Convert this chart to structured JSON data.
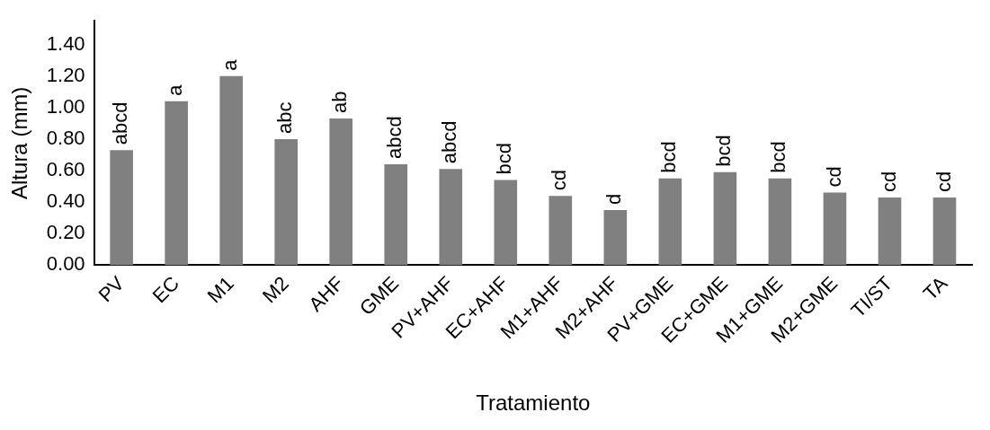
{
  "chart_data": {
    "type": "bar",
    "xlabel": "Tratamiento",
    "ylabel": "Altura (mm)",
    "categories": [
      "PV",
      "EC",
      "M1",
      "M2",
      "AHF",
      "GME",
      "PV+AHF",
      "EC+AHF",
      "M1+AHF",
      "M2+AHF",
      "PV+GME",
      "EC+GME",
      "M1+GME",
      "M2+GME",
      "TI/ST",
      "TA"
    ],
    "values": [
      0.73,
      1.04,
      1.2,
      0.8,
      0.93,
      0.64,
      0.61,
      0.54,
      0.44,
      0.35,
      0.55,
      0.59,
      0.55,
      0.46,
      0.43,
      0.43
    ],
    "color": "#808080",
    "ylim": [
      0,
      1.55
    ],
    "yticks": [
      {
        "value": 0,
        "label": "0.00"
      },
      {
        "value": 0.2,
        "label": "0.20"
      },
      {
        "value": 0.4,
        "label": "0.40"
      },
      {
        "value": 0.6,
        "label": "0.60"
      },
      {
        "value": 0.8,
        "label": "0.80"
      },
      {
        "value": 1,
        "label": "1.00"
      },
      {
        "value": 1.2,
        "label": "1.20"
      },
      {
        "value": 1.4,
        "label": "1.40"
      }
    ],
    "grid": false,
    "legend": false,
    "annotations": [
      {
        "text": "abcd",
        "x": "PV",
        "y": 0.73
      },
      {
        "text": "a",
        "x": "EC",
        "y": 1.04
      },
      {
        "text": "a",
        "x": "M1",
        "y": 1.2
      },
      {
        "text": "abc",
        "x": "M2",
        "y": 0.8
      },
      {
        "text": "ab",
        "x": "AHF",
        "y": 0.93
      },
      {
        "text": "abcd",
        "x": "GME",
        "y": 0.64
      },
      {
        "text": "abcd",
        "x": "PV+AHF",
        "y": 0.61
      },
      {
        "text": "bcd",
        "x": "EC+AHF",
        "y": 0.54
      },
      {
        "text": "cd",
        "x": "M1+AHF",
        "y": 0.44
      },
      {
        "text": "d",
        "x": "M2+AHF",
        "y": 0.35
      },
      {
        "text": "bcd",
        "x": "PV+GME",
        "y": 0.55
      },
      {
        "text": "bcd",
        "x": "EC+GME",
        "y": 0.59
      },
      {
        "text": "bcd",
        "x": "M1+GME",
        "y": 0.55
      },
      {
        "text": "cd",
        "x": "M2+GME",
        "y": 0.46
      },
      {
        "text": "cd",
        "x": "TI/ST",
        "y": 0.43
      },
      {
        "text": "cd",
        "x": "TA",
        "y": 0.43
      }
    ]
  }
}
